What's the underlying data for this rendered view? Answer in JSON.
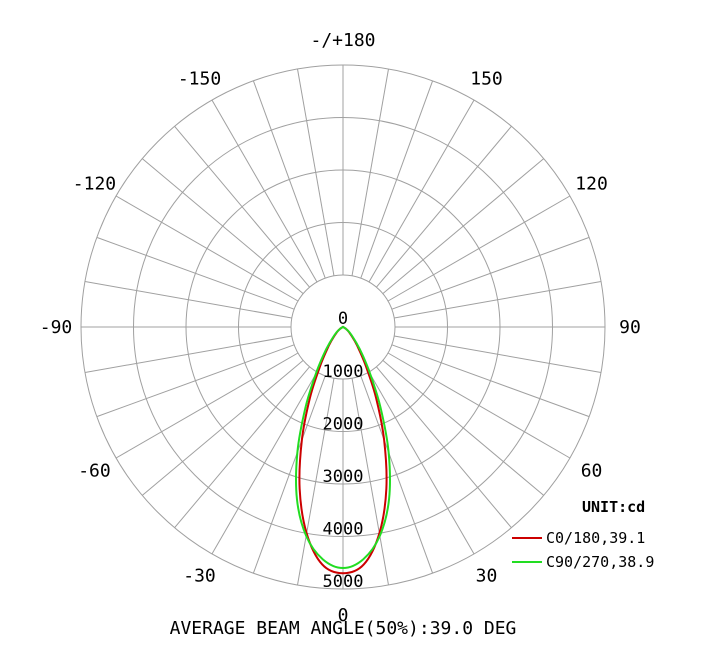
{
  "chart_data": {
    "type": "polar",
    "title": "",
    "footer": "AVERAGE BEAM ANGLE(50%):39.0 DEG",
    "unit": "UNIT:cd",
    "angle_labels": [
      {
        "angle": 0,
        "text": "0"
      },
      {
        "angle": 30,
        "text": "30"
      },
      {
        "angle": 60,
        "text": "60"
      },
      {
        "angle": 90,
        "text": "90"
      },
      {
        "angle": 120,
        "text": "120"
      },
      {
        "angle": 150,
        "text": "150"
      },
      {
        "angle": 180,
        "text": "-/+180"
      },
      {
        "angle": -150,
        "text": "-150"
      },
      {
        "angle": -120,
        "text": "-120"
      },
      {
        "angle": -90,
        "text": "-90"
      },
      {
        "angle": -60,
        "text": "-60"
      },
      {
        "angle": -30,
        "text": "-30"
      }
    ],
    "radial_ticks": [
      {
        "value": 0,
        "text": "0"
      },
      {
        "value": 1000,
        "text": "1000"
      },
      {
        "value": 2000,
        "text": "2000"
      },
      {
        "value": 3000,
        "text": "3000"
      },
      {
        "value": 4000,
        "text": "4000"
      },
      {
        "value": 5000,
        "text": "5000"
      }
    ],
    "rlim": [
      0,
      5000
    ],
    "inner_offset_value": 1000,
    "angle_step": 10,
    "series": [
      {
        "name": "C0/180,39.1",
        "color": "#cc0000",
        "angles": [
          -90,
          -80,
          -70,
          -60,
          -50,
          -40,
          -35,
          -30,
          -25,
          -20,
          -15,
          -10,
          -5,
          0,
          5,
          10,
          15,
          20,
          25,
          30,
          35,
          40,
          50,
          60,
          70,
          80,
          90
        ],
        "values": [
          0,
          0,
          0,
          50,
          150,
          350,
          550,
          900,
          1500,
          2300,
          3200,
          4000,
          4550,
          4700,
          4550,
          4000,
          3200,
          2300,
          1500,
          900,
          550,
          350,
          150,
          50,
          0,
          0,
          0
        ]
      },
      {
        "name": "C90/270,38.9",
        "color": "#22dd22",
        "angles": [
          -90,
          -80,
          -70,
          -60,
          -50,
          -40,
          -35,
          -30,
          -25,
          -20,
          -15,
          -10,
          -5,
          0,
          5,
          10,
          15,
          20,
          25,
          30,
          35,
          40,
          50,
          60,
          70,
          80,
          90
        ],
        "values": [
          0,
          0,
          0,
          50,
          170,
          400,
          650,
          1050,
          1700,
          2550,
          3400,
          4050,
          4450,
          4600,
          4450,
          4050,
          3400,
          2550,
          1700,
          1050,
          650,
          400,
          170,
          50,
          0,
          0,
          0
        ]
      }
    ]
  }
}
